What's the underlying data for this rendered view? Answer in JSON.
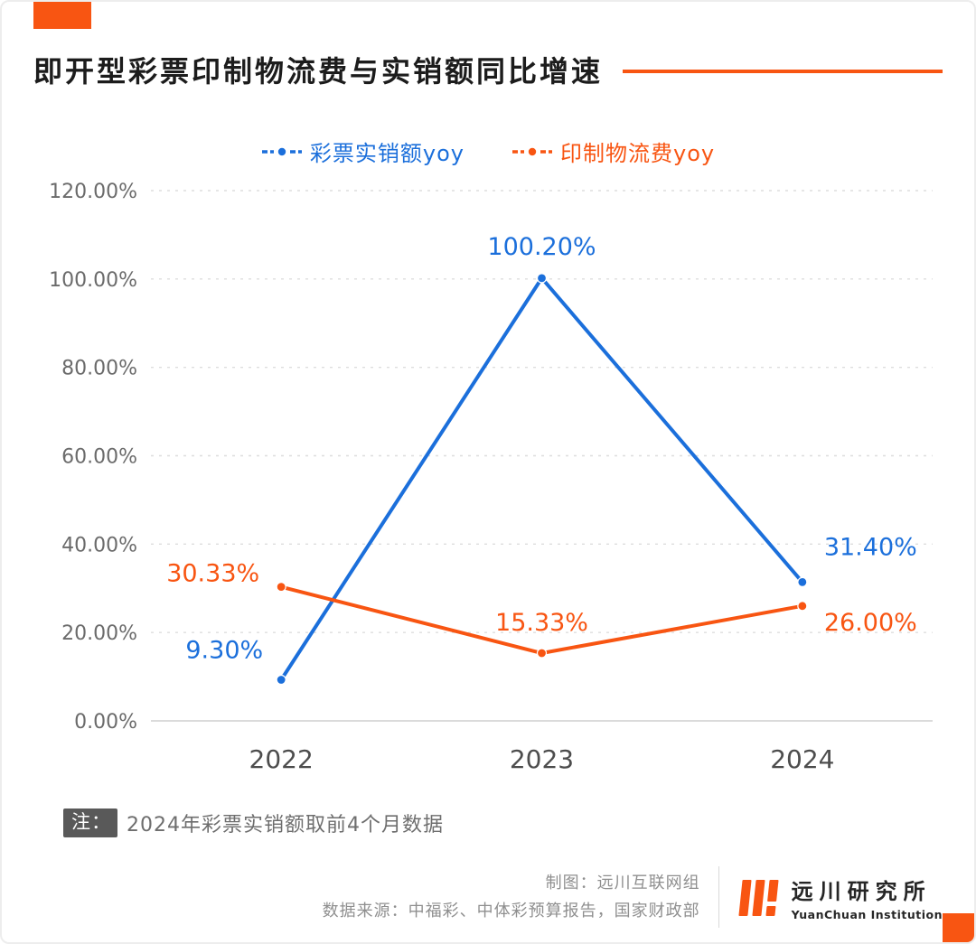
{
  "page": {
    "title": "即开型彩票印制物流费与实销额同比增速",
    "note_prefix": "注：",
    "note_text": "2024年彩票实销额取前4个月数据",
    "credits_line1": "制图：远川互联网组",
    "credits_line2": "数据来源：中福彩、中体彩预算报告，国家财政部",
    "logo_name": "远川研究所",
    "logo_subtitle": "YuanChuan Institution"
  },
  "colors": {
    "accent_orange": "#f85512",
    "series_blue": "#1b6fdb",
    "series_orange": "#f85512",
    "grid": "#dedede",
    "axis_text": "#6b6b6b",
    "x_axis_text": "#4d4d4d"
  },
  "chart_data": {
    "type": "line",
    "title": "即开型彩票印制物流费与实销额同比增速",
    "categories": [
      "2022",
      "2023",
      "2024"
    ],
    "series": [
      {
        "name": "彩票实销额yoy",
        "color_key": "series_blue",
        "values": [
          9.3,
          100.2,
          31.4
        ],
        "labels": [
          "9.30%",
          "100.20%",
          "31.40%"
        ]
      },
      {
        "name": "印制物流费yoy",
        "color_key": "series_orange",
        "values": [
          30.33,
          15.33,
          26.0
        ],
        "labels": [
          "30.33%",
          "15.33%",
          "26.00%"
        ]
      }
    ],
    "y_ticks": [
      "0.00%",
      "20.00%",
      "40.00%",
      "60.00%",
      "80.00%",
      "100.00%",
      "120.00%"
    ],
    "ylim": [
      0,
      120
    ],
    "grid": "dashed",
    "legend_position": "top"
  }
}
